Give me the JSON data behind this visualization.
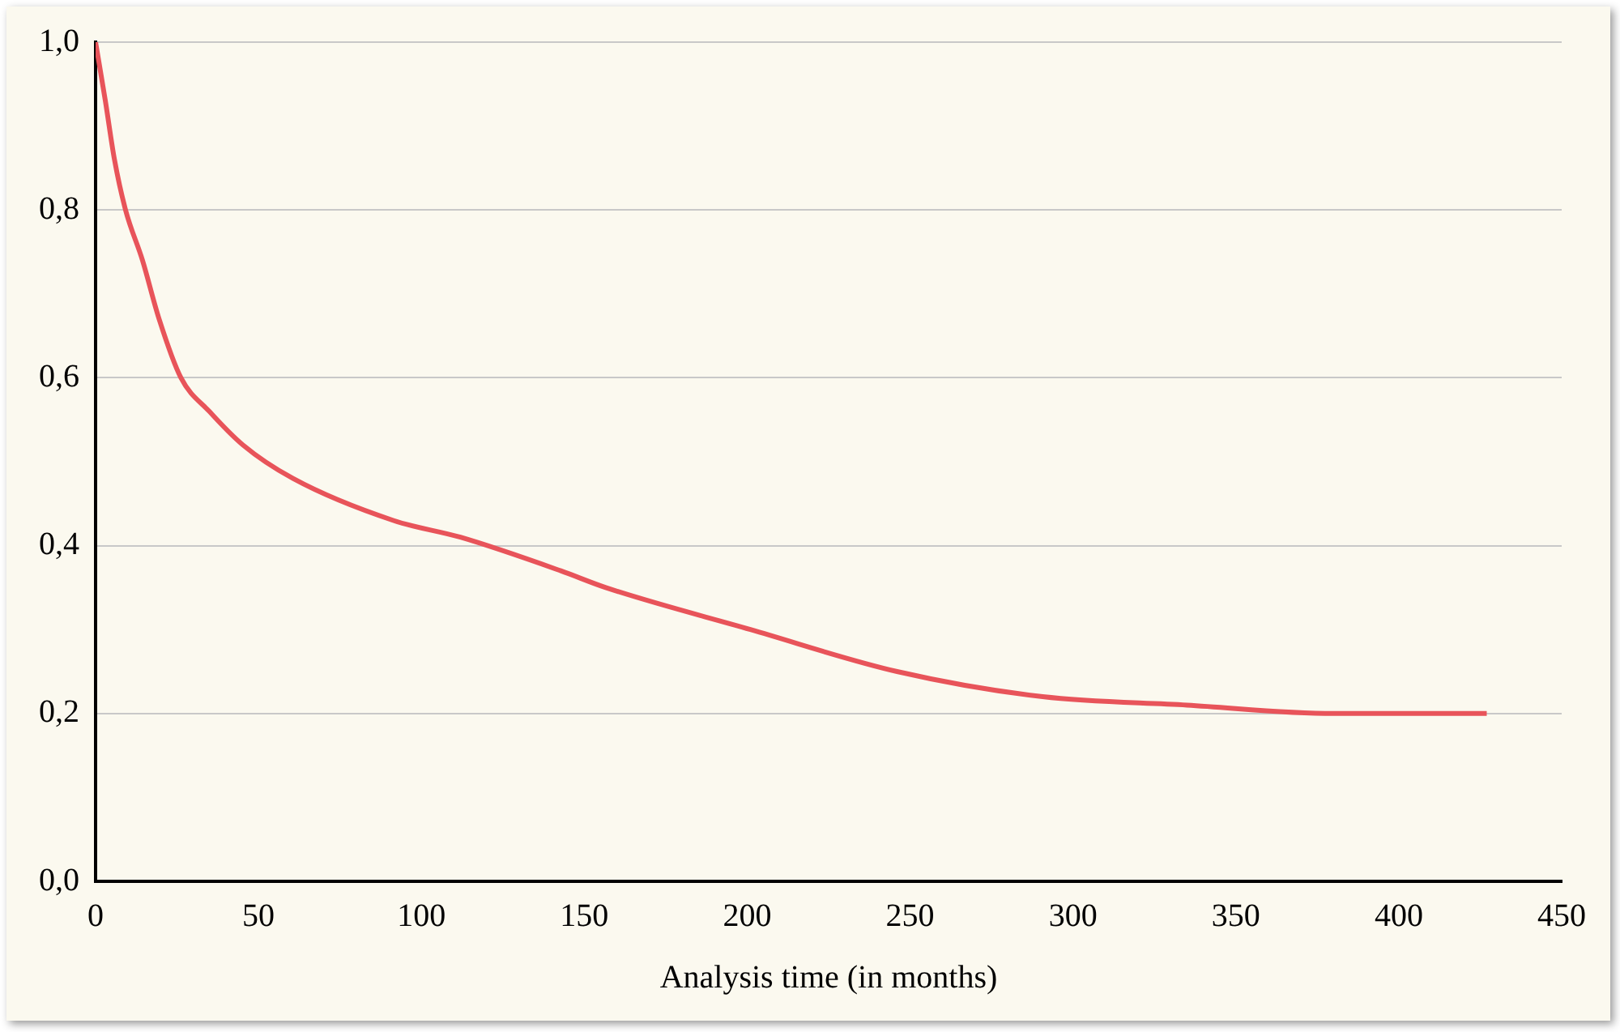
{
  "chart_data": {
    "type": "line",
    "xlabel": "Analysis time (in months)",
    "x": [
      0,
      3,
      5.8,
      9.2,
      14.4,
      19.5,
      26.2,
      34.9,
      45.2,
      60.6,
      91.4,
      112,
      142.8,
      156.6,
      201,
      246,
      290.7,
      335,
      380,
      427
    ],
    "series": [
      {
        "color": "#e8545a",
        "values": [
          1.0,
          0.93,
          0.86,
          0.8,
          0.74,
          0.67,
          0.6,
          0.56,
          0.52,
          0.48,
          0.43,
          0.41,
          0.37,
          0.35,
          0.3,
          0.25,
          0.22,
          0.21,
          0.2,
          0.2
        ]
      }
    ],
    "xlim": [
      0,
      450
    ],
    "xticks": [
      0,
      50,
      100,
      150,
      200,
      250,
      300,
      350,
      400,
      450
    ],
    "ylim": [
      0,
      1
    ],
    "yticks": [
      {
        "value": 0,
        "label": "0,0"
      },
      {
        "value": 0.2,
        "label": "0,2"
      },
      {
        "value": 0.4,
        "label": "0,4"
      },
      {
        "value": 0.6,
        "label": "0,6"
      },
      {
        "value": 0.8,
        "label": "0,8"
      },
      {
        "value": 1,
        "label": "1,0"
      }
    ],
    "grid": "y",
    "legend": false,
    "marker": "none",
    "line_style": "solid"
  }
}
